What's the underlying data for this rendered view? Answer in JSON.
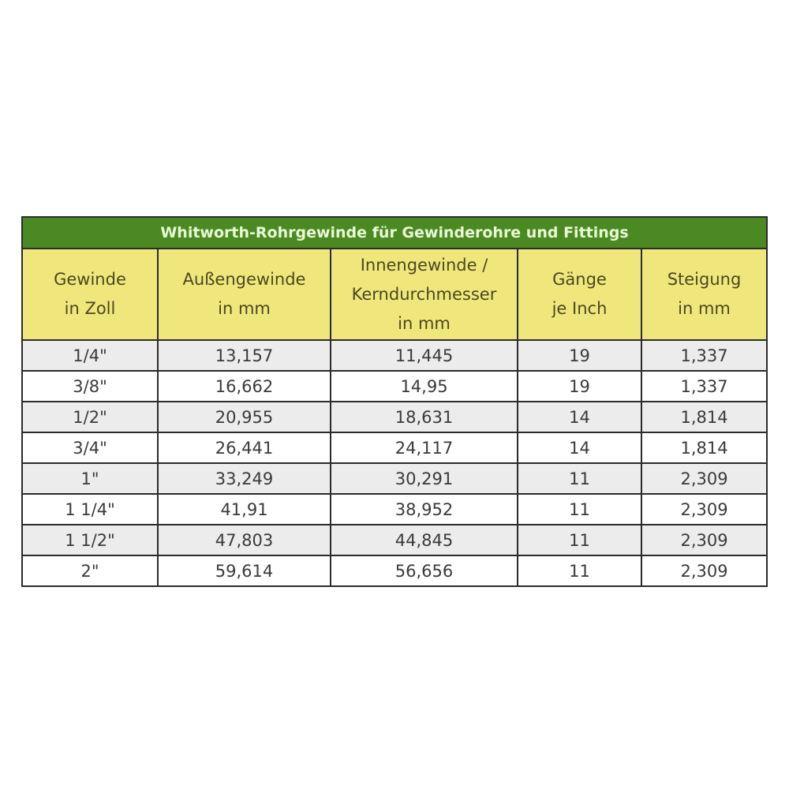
{
  "title": "Whitworth-Rohrgewinde für Gewinderohre und Fittings",
  "columns": [
    [
      "Gewinde",
      "in Zoll"
    ],
    [
      "Außengewinde",
      "in mm"
    ],
    [
      "Innengewinde /",
      "Kerndurchmesser",
      "in mm"
    ],
    [
      "Gänge",
      "je Inch"
    ],
    [
      "Steigung",
      "in mm"
    ]
  ],
  "rows": [
    [
      "1/4\"",
      "13,157",
      "11,445",
      "19",
      "1,337"
    ],
    [
      "3/8\"",
      "16,662",
      "14,95",
      "19",
      "1,337"
    ],
    [
      "1/2\"",
      "20,955",
      "18,631",
      "14",
      "1,814"
    ],
    [
      "3/4\"",
      "26,441",
      "24,117",
      "14",
      "1,814"
    ],
    [
      "1\"",
      "33,249",
      "30,291",
      "11",
      "2,309"
    ],
    [
      "1 1/4\"",
      "41,91",
      "38,952",
      "11",
      "2,309"
    ],
    [
      "1 1/2\"",
      "47,803",
      "44,845",
      "11",
      "2,309"
    ],
    [
      "2\"",
      "59,614",
      "56,656",
      "11",
      "2,309"
    ]
  ],
  "colors": {
    "title_bg": "#4b8a22",
    "header_bg": "#f0e77c",
    "row_alt_bg": "#ececec"
  }
}
